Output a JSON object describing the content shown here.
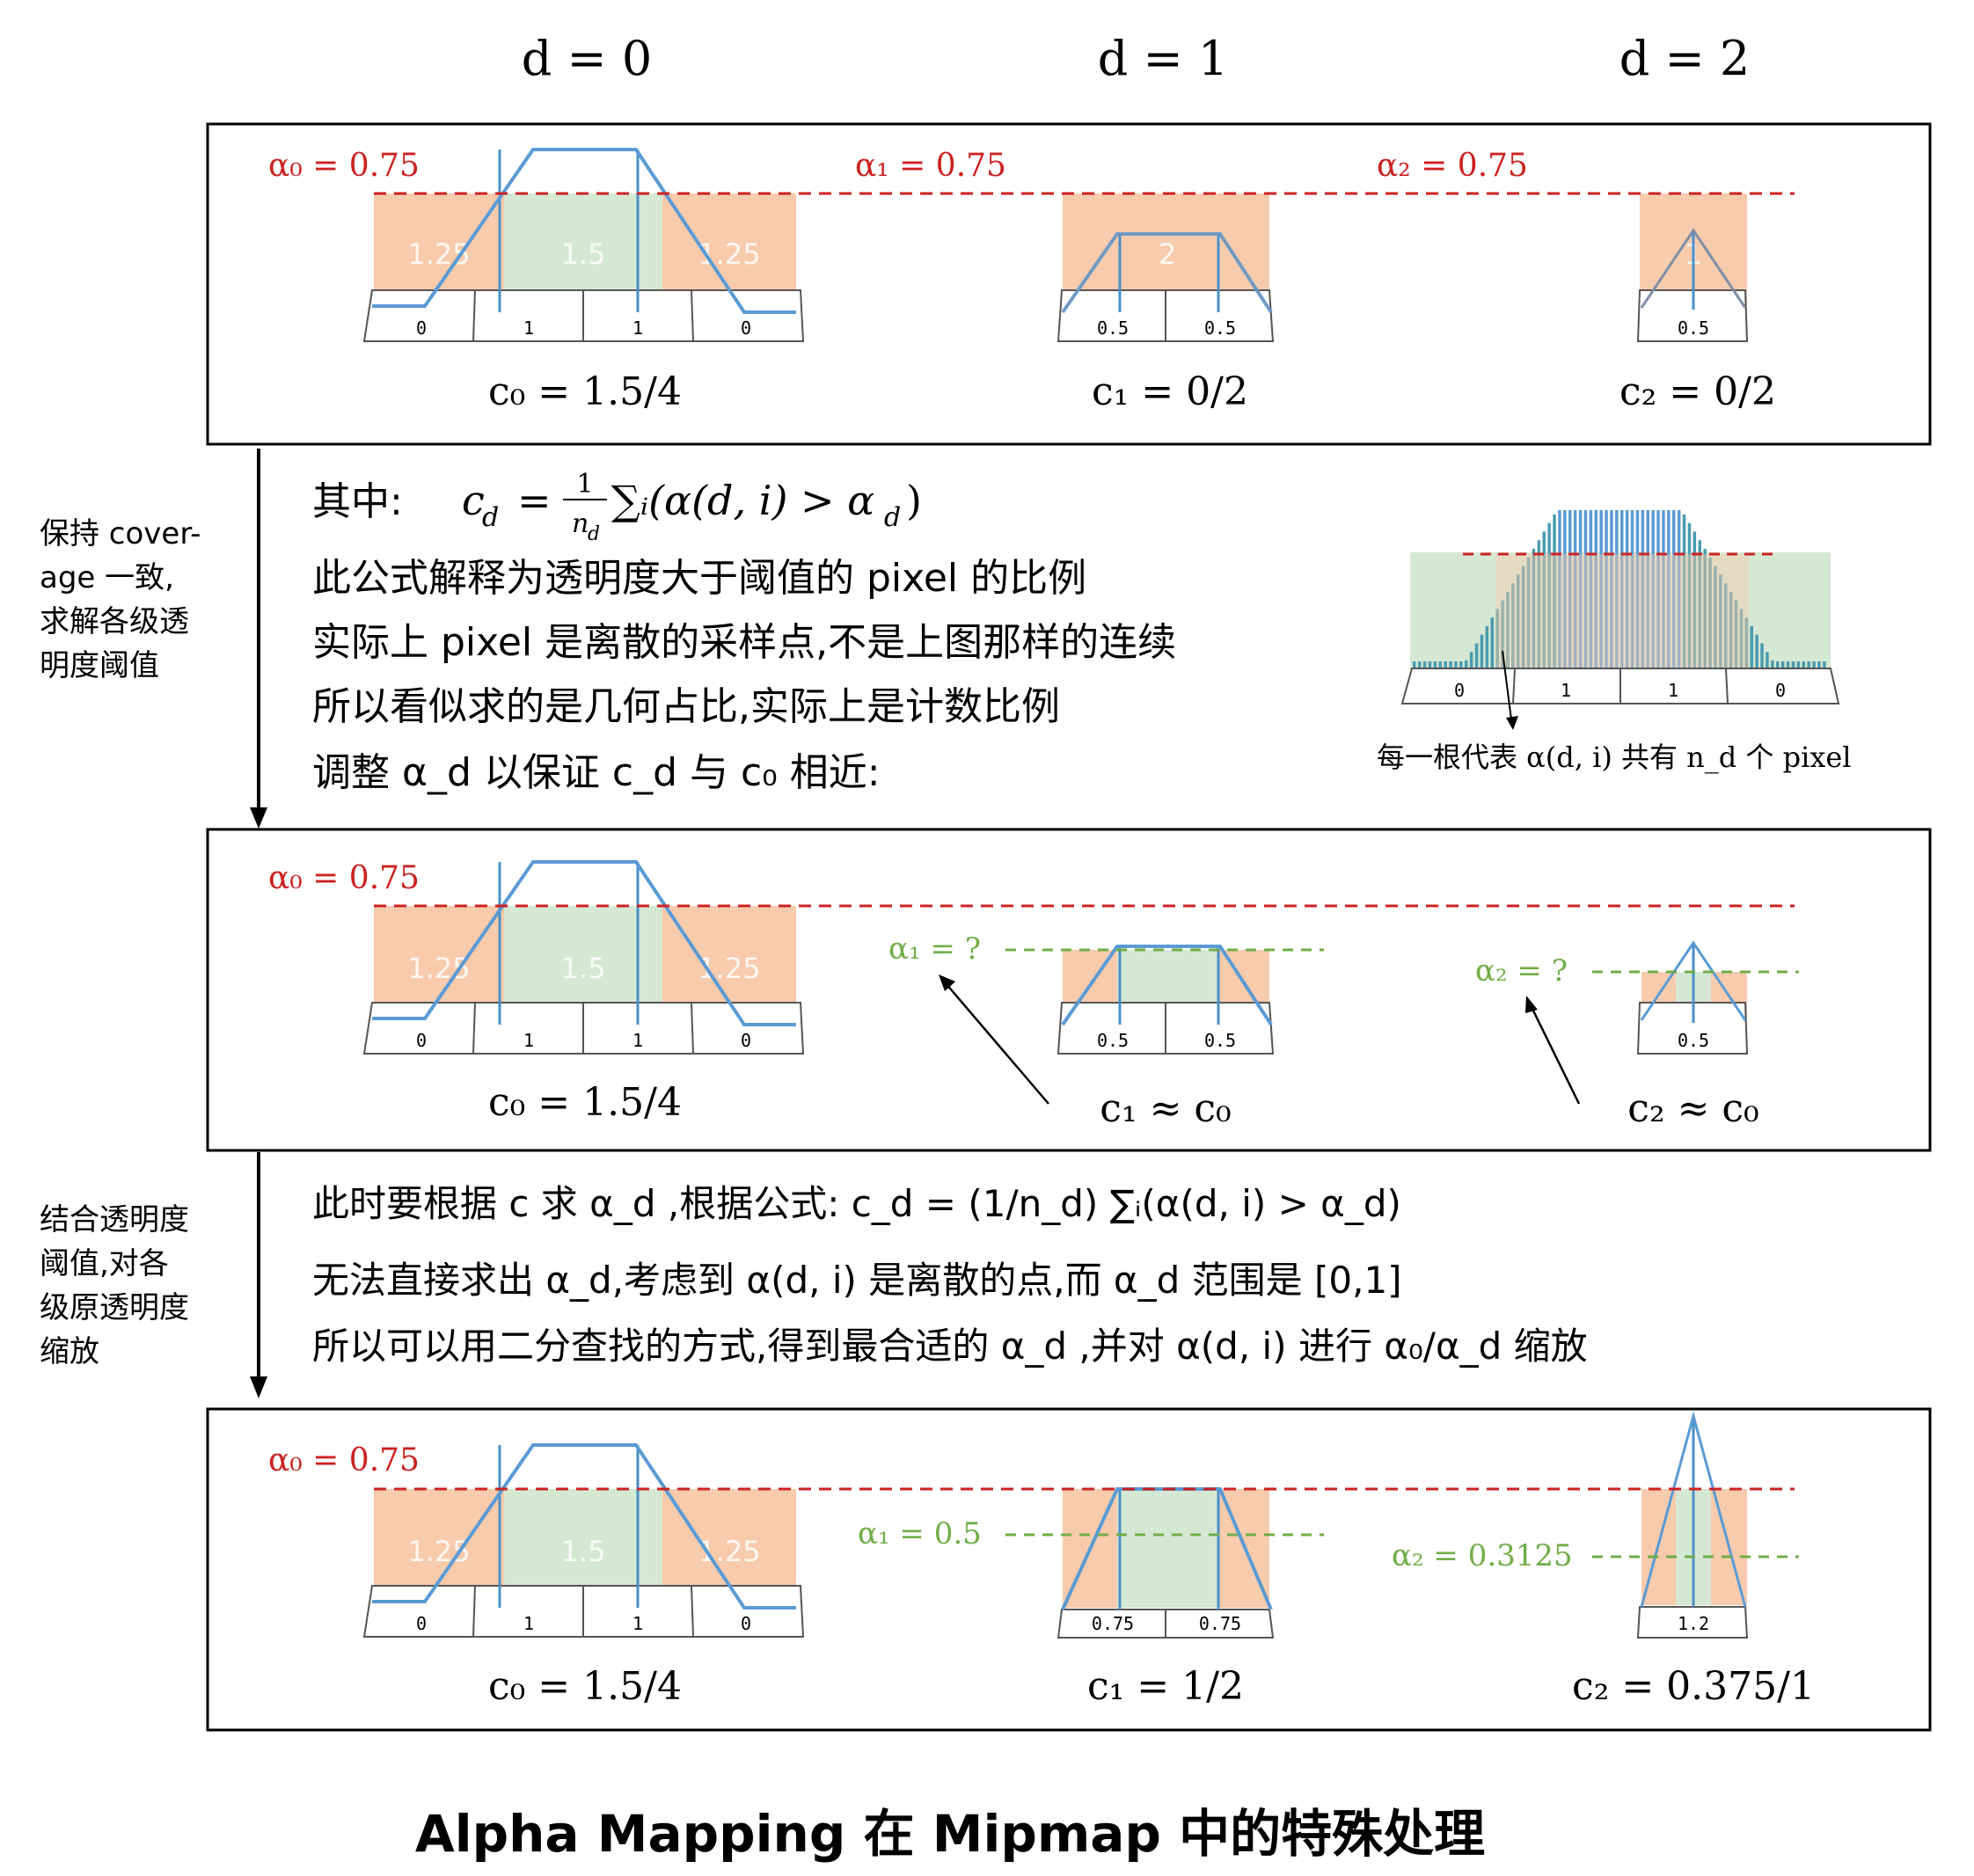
{
  "headers": [
    "d = 0",
    "d = 1",
    "d = 2"
  ],
  "colors": {
    "red": "#cc2222",
    "green": "#70ad47",
    "blue": "#5b9bd5",
    "peach": "#f8cbad",
    "lightgreen": "#d5e8d4",
    "gray": "#555555",
    "black": "#000000"
  },
  "panel1": {
    "alpha0": "α₀ = 0.75",
    "alpha1": "α₁ = 0.75",
    "alpha2": "α₂ = 0.75",
    "d0": {
      "areas": [
        "1.25",
        "1.5",
        "1.25"
      ],
      "cells": [
        "0",
        "1",
        "1",
        "0"
      ]
    },
    "d1": {
      "area": "2",
      "cells": [
        "0.5",
        "0.5"
      ]
    },
    "d2": {
      "area": "1",
      "cells": [
        "0.5"
      ]
    },
    "c0": "c₀ = 1.5/4",
    "c1": "c₁ = 0/2",
    "c2": "c₂ = 0/2"
  },
  "side1": [
    "保持 cover-",
    "age 一致,",
    "求解各级透",
    "明度阈值"
  ],
  "explain1": {
    "line1_prefix": "其中:",
    "formula_lhs": "c",
    "formula_sub": "d",
    "formula_eq": "=",
    "frac_num": "1",
    "frac_den": "n",
    "frac_den_sub": "d",
    "formula_rhs": "∑ᵢ(α(d, i) > α",
    "formula_rhs_sub": "d",
    "formula_close": ")",
    "line2": "此公式解释为透明度大于阈值的 pixel 的比例",
    "line3": "实际上 pixel 是离散的采样点,不是上图那样的连续",
    "line4": "所以看似求的是几何占比,实际上是计数比例",
    "line5": "调整 α_d 以保证 c_d 与 c₀ 相近:"
  },
  "bars": {
    "cells": [
      "0",
      "1",
      "1",
      "0"
    ],
    "caption": "每一根代表 α(d, i) 共有 n_d 个 pixel"
  },
  "panel2": {
    "alpha0": "α₀ = 0.75",
    "alpha1": "α₁ = ?",
    "alpha2": "α₂ = ?",
    "d0": {
      "areas": [
        "1.25",
        "1.5",
        "1.25"
      ],
      "cells": [
        "0",
        "1",
        "1",
        "0"
      ]
    },
    "d1": {
      "cells": [
        "0.5",
        "0.5"
      ]
    },
    "d2": {
      "cells": [
        "0.5"
      ]
    },
    "c0": "c₀ = 1.5/4",
    "c1": "c₁ ≈ c₀",
    "c2": "c₂ ≈ c₀"
  },
  "side2": [
    "结合透明度",
    "阈值,对各",
    "级原透明度",
    "缩放"
  ],
  "explain2": {
    "line1": "此时要根据 c 求 α_d ,根据公式: c_d = (1/n_d) ∑ᵢ(α(d, i) > α_d)",
    "line2": "无法直接求出 α_d,考虑到 α(d, i) 是离散的点,而 α_d 范围是 [0,1]",
    "line3": "所以可以用二分查找的方式,得到最合适的 α_d ,并对 α(d, i) 进行 α₀/α_d 缩放"
  },
  "panel3": {
    "alpha0": "α₀ = 0.75",
    "alpha1": "α₁ = 0.5",
    "alpha2": "α₂ = 0.3125",
    "d0": {
      "areas": [
        "1.25",
        "1.5",
        "1.25"
      ],
      "cells": [
        "0",
        "1",
        "1",
        "0"
      ]
    },
    "d1": {
      "cells": [
        "0.75",
        "0.75"
      ]
    },
    "d2": {
      "cells": [
        "1.2"
      ]
    },
    "c0": "c₀ = 1.5/4",
    "c1": "c₁ = 1/2",
    "c2": "c₂ = 0.375/1"
  },
  "footer_title": "Alpha Mapping 在 Mipmap 中的特殊处理"
}
